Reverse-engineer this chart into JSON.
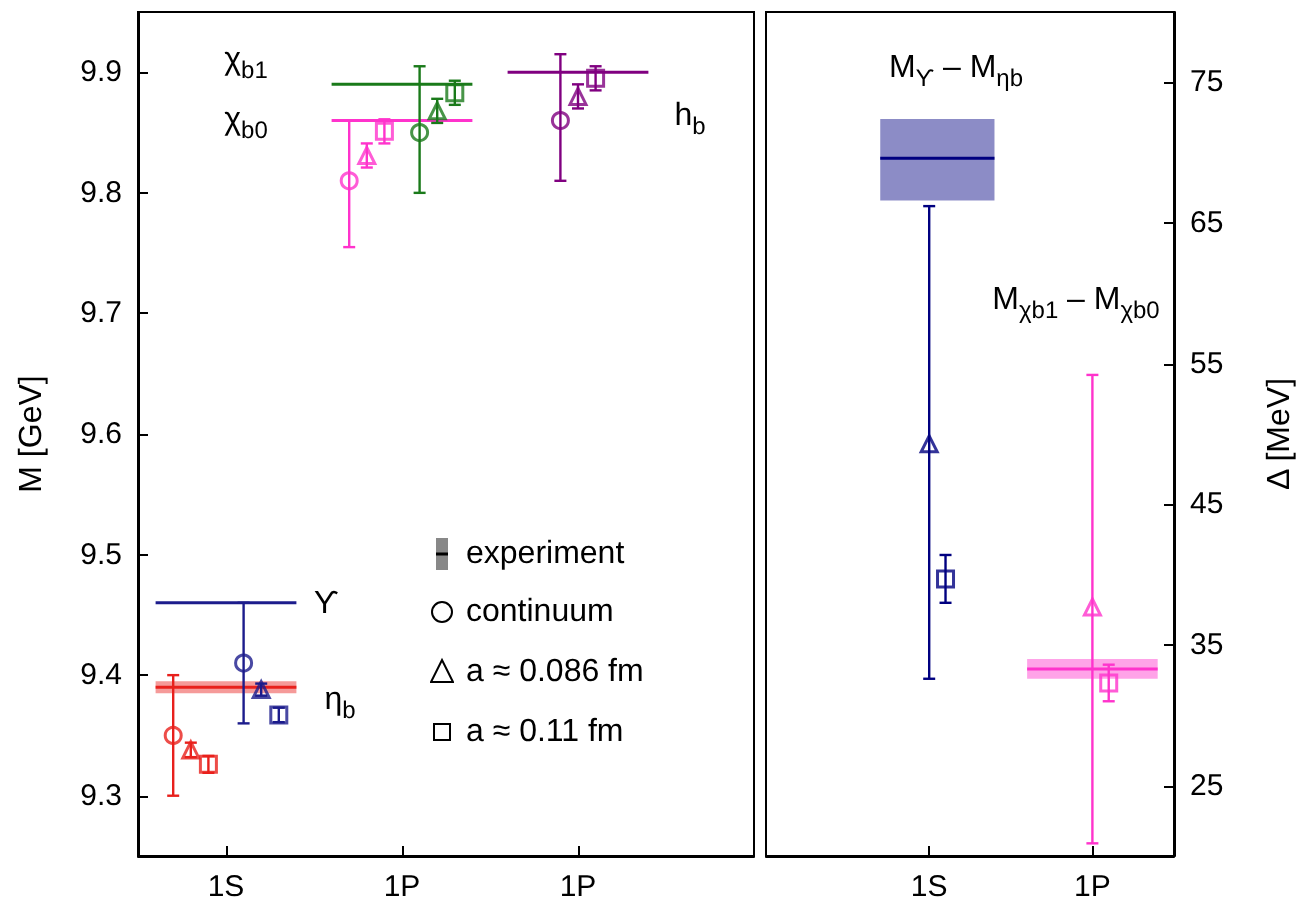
{
  "chart_data": [
    {
      "type": "scatter",
      "ylabel": "M [GeV]",
      "categories": [
        null,
        null,
        null,
        null,
        null,
        "1S",
        null,
        null,
        null,
        null,
        null,
        null,
        null,
        null,
        null,
        "1P",
        null,
        null,
        null,
        null,
        null,
        null,
        null,
        null,
        null,
        "1P",
        null,
        null,
        null,
        null,
        null,
        null,
        null,
        null,
        null,
        null
      ],
      "ylim": [
        9.25,
        9.95
      ],
      "yticks": [
        9.3,
        9.4,
        9.5,
        9.6,
        9.7,
        9.8,
        9.9
      ],
      "grid": false,
      "series": [
        {
          "type": "line",
          "color": "#e8201c",
          "values": [
            null,
            9.39,
            9.39,
            9.39,
            9.39,
            9.39,
            9.39,
            9.39,
            9.39,
            9.39,
            null,
            null,
            null,
            null,
            null,
            null,
            null,
            null,
            null,
            null,
            null,
            null,
            null,
            null,
            null,
            null,
            null,
            null,
            null,
            null,
            null,
            null,
            null,
            null,
            null,
            null
          ],
          "lower": [
            null,
            9.385,
            9.385,
            9.385,
            9.385,
            9.385,
            9.385,
            9.385,
            9.385,
            9.385,
            null,
            null,
            null,
            null,
            null,
            null,
            null,
            null,
            null,
            null,
            null,
            null,
            null,
            null,
            null,
            null,
            null,
            null,
            null,
            null,
            null,
            null,
            null,
            null,
            null,
            null
          ],
          "upper": [
            null,
            9.395,
            9.395,
            9.395,
            9.395,
            9.395,
            9.395,
            9.395,
            9.395,
            9.395,
            null,
            null,
            null,
            null,
            null,
            null,
            null,
            null,
            null,
            null,
            null,
            null,
            null,
            null,
            null,
            null,
            null,
            null,
            null,
            null,
            null,
            null,
            null,
            null,
            null,
            null
          ]
        },
        {
          "type": "line",
          "color": "#1c1c8c",
          "values": [
            null,
            9.46,
            9.46,
            9.46,
            9.46,
            9.46,
            9.46,
            9.46,
            9.46,
            9.46,
            null,
            null,
            null,
            null,
            null,
            null,
            null,
            null,
            null,
            null,
            null,
            null,
            null,
            null,
            null,
            null,
            null,
            null,
            null,
            null,
            null,
            null,
            null,
            null,
            null,
            null
          ]
        },
        {
          "type": "line",
          "color": "#ff33cc",
          "values": [
            null,
            null,
            null,
            null,
            null,
            null,
            null,
            null,
            null,
            null,
            null,
            9.86,
            9.86,
            9.86,
            9.86,
            9.86,
            9.86,
            9.86,
            9.86,
            9.86,
            null,
            null,
            null,
            null,
            null,
            null,
            null,
            null,
            null,
            null,
            null,
            null,
            null,
            null,
            null,
            null
          ]
        },
        {
          "type": "line",
          "color": "#1a7a1a",
          "values": [
            null,
            null,
            null,
            null,
            null,
            null,
            null,
            null,
            null,
            null,
            null,
            9.89,
            9.89,
            9.89,
            9.89,
            9.89,
            9.89,
            9.89,
            9.89,
            9.89,
            null,
            null,
            null,
            null,
            null,
            null,
            null,
            null,
            null,
            null,
            null,
            null,
            null,
            null,
            null,
            null
          ]
        },
        {
          "type": "line",
          "color": "#800080",
          "values": [
            null,
            null,
            null,
            null,
            null,
            null,
            null,
            null,
            null,
            null,
            null,
            null,
            null,
            null,
            null,
            null,
            null,
            null,
            null,
            null,
            null,
            9.9,
            9.9,
            9.9,
            9.9,
            9.9,
            9.9,
            9.9,
            9.9,
            9.9,
            null,
            null,
            null,
            null,
            null,
            null
          ]
        },
        {
          "marker": "circle",
          "color": "#000000",
          "colors": [
            null,
            null,
            "#e8201c",
            null,
            null,
            null,
            "#1c1c8c",
            null,
            null,
            null,
            null,
            null,
            "#ff33cc",
            null,
            null,
            null,
            "#1a7a1a",
            null,
            null,
            null,
            null,
            null,
            null,
            null,
            "#800080",
            null,
            null,
            null,
            null,
            null,
            null,
            null,
            null,
            null,
            null,
            null
          ],
          "values": [
            null,
            null,
            9.35,
            null,
            null,
            null,
            9.41,
            null,
            null,
            null,
            null,
            null,
            9.81,
            null,
            null,
            null,
            9.85,
            null,
            null,
            null,
            null,
            null,
            null,
            null,
            9.86,
            null,
            null,
            null,
            null,
            null,
            null,
            null,
            null,
            null,
            null,
            null
          ],
          "errors": [
            null,
            null,
            [
              9.3,
              9.4
            ],
            null,
            null,
            null,
            [
              9.36,
              9.46
            ],
            null,
            null,
            null,
            null,
            null,
            [
              9.755,
              9.86
            ],
            null,
            null,
            null,
            [
              9.8,
              9.905
            ],
            null,
            null,
            null,
            null,
            null,
            null,
            null,
            [
              9.81,
              9.915
            ],
            null,
            null,
            null,
            null,
            null,
            null,
            null,
            null,
            null,
            null,
            null
          ]
        },
        {
          "marker": "triangle",
          "color": "#000000",
          "colors": [
            null,
            null,
            null,
            "#e8201c",
            null,
            null,
            null,
            "#1c1c8c",
            null,
            null,
            null,
            null,
            null,
            "#ff33cc",
            null,
            null,
            null,
            "#1a7a1a",
            null,
            null,
            null,
            null,
            null,
            null,
            null,
            "#800080",
            null,
            null,
            null,
            null,
            null,
            null,
            null,
            null,
            null,
            null
          ],
          "values": [
            null,
            null,
            null,
            9.338,
            null,
            null,
            null,
            9.388,
            null,
            null,
            null,
            null,
            null,
            9.831,
            null,
            null,
            null,
            9.868,
            null,
            null,
            null,
            null,
            null,
            null,
            null,
            9.88,
            null,
            null,
            null,
            null,
            null,
            null,
            null,
            null,
            null,
            null
          ],
          "errors": [
            null,
            null,
            null,
            0.006,
            null,
            null,
            null,
            0.005,
            null,
            null,
            null,
            null,
            null,
            0.01,
            null,
            null,
            null,
            0.01,
            null,
            null,
            null,
            null,
            null,
            null,
            null,
            0.01,
            null,
            null,
            null,
            null,
            null,
            null,
            null,
            null,
            null,
            null
          ]
        },
        {
          "marker": "square",
          "color": "#000000",
          "colors": [
            null,
            null,
            null,
            null,
            "#e8201c",
            null,
            null,
            null,
            "#1c1c8c",
            null,
            null,
            null,
            null,
            null,
            "#ff33cc",
            null,
            null,
            null,
            "#1a7a1a",
            null,
            null,
            null,
            null,
            null,
            null,
            null,
            "#800080",
            null,
            null,
            null,
            null,
            null,
            null,
            null,
            null,
            null
          ],
          "values": [
            null,
            null,
            null,
            null,
            9.326,
            null,
            null,
            null,
            9.367,
            null,
            null,
            null,
            null,
            null,
            9.851,
            null,
            null,
            null,
            9.883,
            null,
            null,
            null,
            null,
            null,
            null,
            null,
            9.895,
            null,
            null,
            null,
            null,
            null,
            null,
            null,
            null,
            null
          ],
          "errors": [
            null,
            null,
            null,
            null,
            0.007,
            null,
            null,
            null,
            0.006,
            null,
            null,
            null,
            null,
            null,
            0.01,
            null,
            null,
            null,
            0.01,
            null,
            null,
            null,
            null,
            null,
            null,
            null,
            0.01,
            null,
            null,
            null,
            null,
            null,
            null,
            null,
            null,
            null
          ]
        }
      ],
      "annotations": [
        "χ$_{b1}$",
        "χ$_{b0}$",
        "h$_{b}$",
        "ϒ",
        "η$_{b}$",
        "experiment",
        "continuum",
        "a ≈ 0.086 fm",
        "a ≈ 0.11 fm"
      ]
    },
    {
      "type": "scatter",
      "y2label": "Δ [MeV]",
      "categories": [
        null,
        null,
        null,
        null,
        null,
        null,
        null,
        null,
        null,
        null,
        "1S",
        null,
        null,
        null,
        null,
        null,
        null,
        null,
        null,
        null,
        "1P",
        null,
        null,
        null,
        null,
        null
      ],
      "y2lim": [
        20,
        80
      ],
      "y2ticks": [
        25,
        35,
        45,
        55,
        65,
        75
      ],
      "grid": false,
      "series": [
        {
          "type": "line",
          "axis": "y2",
          "color": "#000080",
          "values": [
            null,
            null,
            null,
            null,
            null,
            null,
            null,
            69.6,
            69.6,
            69.6,
            69.6,
            69.6,
            69.6,
            69.6,
            69.6,
            null,
            null,
            null,
            null,
            null,
            null,
            null,
            null,
            null,
            null,
            null
          ],
          "lower": [
            null,
            null,
            null,
            null,
            null,
            null,
            null,
            66.6,
            66.6,
            66.6,
            66.6,
            66.6,
            66.6,
            66.6,
            66.6,
            null,
            null,
            null,
            null,
            null,
            null,
            null,
            null,
            null,
            null,
            null
          ],
          "upper": [
            null,
            null,
            null,
            null,
            null,
            null,
            null,
            72.4,
            72.4,
            72.4,
            72.4,
            72.4,
            72.4,
            72.4,
            72.4,
            null,
            null,
            null,
            null,
            null,
            null,
            null,
            null,
            null,
            null,
            null
          ]
        },
        {
          "type": "line",
          "axis": "y2",
          "color": "#ff33cc",
          "values": [
            null,
            null,
            null,
            null,
            null,
            null,
            null,
            null,
            null,
            null,
            null,
            null,
            null,
            null,
            null,
            null,
            33.3,
            33.3,
            33.3,
            33.3,
            33.3,
            33.3,
            33.3,
            33.3,
            33.3,
            null
          ],
          "lower": [
            null,
            null,
            null,
            null,
            null,
            null,
            null,
            null,
            null,
            null,
            null,
            null,
            null,
            null,
            null,
            null,
            32.6,
            32.6,
            32.6,
            32.6,
            32.6,
            32.6,
            32.6,
            32.6,
            32.6,
            null
          ],
          "upper": [
            null,
            null,
            null,
            null,
            null,
            null,
            null,
            null,
            null,
            null,
            null,
            null,
            null,
            null,
            null,
            null,
            34.0,
            34.0,
            34.0,
            34.0,
            34.0,
            34.0,
            34.0,
            34.0,
            34.0,
            null
          ]
        },
        {
          "axis": "y2",
          "marker": "triangle",
          "colors": [
            null,
            null,
            null,
            null,
            null,
            null,
            null,
            null,
            null,
            null,
            "#000080",
            null,
            null,
            null,
            null,
            null,
            null,
            null,
            null,
            null,
            "#ff33cc",
            null,
            null,
            null,
            null,
            null
          ],
          "values": [
            null,
            null,
            null,
            null,
            null,
            null,
            null,
            null,
            null,
            null,
            49.3,
            null,
            null,
            null,
            null,
            null,
            null,
            null,
            null,
            null,
            37.7,
            null,
            null,
            null,
            null,
            null
          ],
          "errors": [
            null,
            null,
            null,
            null,
            null,
            null,
            null,
            null,
            null,
            null,
            [
              32.6,
              66.2
            ],
            null,
            null,
            null,
            null,
            null,
            null,
            null,
            null,
            null,
            [
              20.9,
              54.2
            ],
            null,
            null,
            null,
            null,
            null
          ]
        },
        {
          "axis": "y2",
          "marker": "square",
          "colors": [
            null,
            null,
            null,
            null,
            null,
            null,
            null,
            null,
            null,
            null,
            null,
            "#000080",
            null,
            null,
            null,
            null,
            null,
            null,
            null,
            null,
            null,
            "#ff33cc",
            null,
            null,
            null,
            null
          ],
          "values": [
            null,
            null,
            null,
            null,
            null,
            null,
            null,
            null,
            null,
            null,
            null,
            39.7,
            null,
            null,
            null,
            null,
            null,
            null,
            null,
            null,
            null,
            32.3,
            null,
            null,
            null,
            null
          ],
          "errors": [
            null,
            null,
            null,
            null,
            null,
            null,
            null,
            null,
            null,
            null,
            null,
            [
              38.0,
              41.4
            ],
            null,
            null,
            null,
            null,
            null,
            null,
            null,
            null,
            null,
            [
              31.0,
              33.6
            ],
            null,
            null,
            null,
            null
          ]
        }
      ],
      "annotations": [
        "M$_{ϒ}$ – M$_{ηb}$",
        "M$_{χb1}$ – M$_{χb0}$"
      ]
    }
  ]
}
